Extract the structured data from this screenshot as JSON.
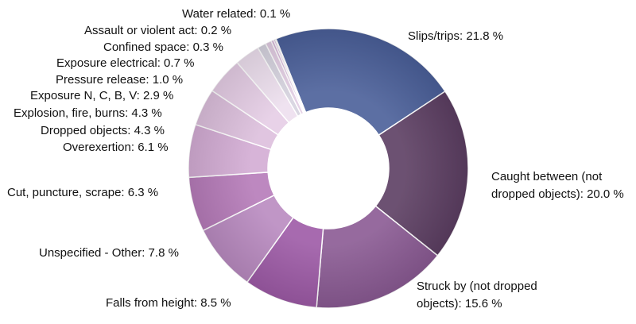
{
  "chart_data": {
    "type": "pie",
    "variant": "donut",
    "title": "",
    "legend": "none",
    "unit": "%",
    "slices": [
      {
        "name": "Slips/trips",
        "value": 21.8,
        "label": "Slips/trips: 21.8 %",
        "color": "#4a5f99"
      },
      {
        "name": "Caught between (not dropped objects)",
        "value": 20.0,
        "label_lines": [
          "Caught between (not",
          "dropped objects): 20.0 %"
        ],
        "color": "#5c3e62"
      },
      {
        "name": "Struck by (not dropped objects)",
        "value": 15.6,
        "label_lines": [
          "Struck by (not dropped",
          "objects): 15.6 %"
        ],
        "color": "#8a5a93"
      },
      {
        "name": "Falls from height",
        "value": 8.5,
        "label": "Falls from height: 8.5 %",
        "color": "#9d5aa6"
      },
      {
        "name": "Unspecified - Other",
        "value": 7.8,
        "label": "Unspecified - Other: 7.8 %",
        "color": "#b98ac0"
      },
      {
        "name": "Cut, puncture, scrape",
        "value": 6.3,
        "label": "Cut, puncture, scrape: 6.3 %",
        "color": "#b67bb9"
      },
      {
        "name": "Overexertion",
        "value": 6.1,
        "label": "Overexertion: 6.1 %",
        "color": "#d3acd4"
      },
      {
        "name": "Dropped objects",
        "value": 4.3,
        "label": "Dropped objects: 4.3 %",
        "color": "#dcbfdc"
      },
      {
        "name": "Explosion, fire, burns",
        "value": 4.3,
        "label": "Explosion, fire, burns: 4.3 %",
        "color": "#e5cde5"
      },
      {
        "name": "Exposure N, C, B, V",
        "value": 2.9,
        "label": "Exposure N, C, B, V: 2.9 %",
        "color": "#eddfee"
      },
      {
        "name": "Pressure release",
        "value": 1.0,
        "label": "Pressure release: 1.0 %",
        "color": "#d6d3df"
      },
      {
        "name": "Exposure electrical",
        "value": 0.7,
        "label": "Exposure electrical: 0.7 %",
        "color": "#e2cde3"
      },
      {
        "name": "Confined space",
        "value": 0.3,
        "label": "Confined space: 0.3 %",
        "color": "#d9b6db"
      },
      {
        "name": "Assault or violent act",
        "value": 0.2,
        "label": "Assault or violent act: 0.2 %",
        "color": "#cfa8d3"
      },
      {
        "name": "Water related",
        "value": 0.1,
        "label": "Water related: 0.1 %",
        "color": "#a9b6d9"
      }
    ]
  }
}
